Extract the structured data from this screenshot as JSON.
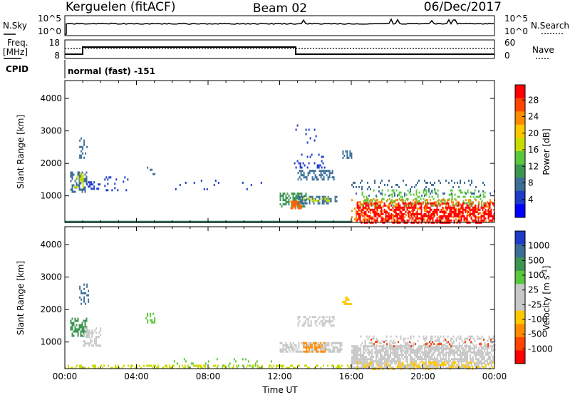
{
  "header": {
    "station": "Kerguelen (fitACF)",
    "beam": "Beam 02",
    "date": "06/Dec/2017"
  },
  "noise_panel": {
    "left_label": "N.Sky",
    "right_label": "N.Search",
    "left_ticks": [
      "10^5",
      "10^0"
    ],
    "right_ticks": [
      "10^5",
      "10^0"
    ]
  },
  "freq_panel": {
    "left_label_1": "Freq.",
    "left_label_2": "[MHz]",
    "right_label": "Nave",
    "left_ticks": [
      "18",
      "8"
    ],
    "right_ticks": [
      "60",
      "0"
    ],
    "cpid_label": "CPID",
    "cpid_text": "normal (fast) -151"
  },
  "chart_data": [
    {
      "type": "heatmap",
      "name": "power",
      "ylabel": "Slant Range [km]",
      "xlabel": "",
      "xlim": [
        0,
        24
      ],
      "ylim": [
        180,
        4550
      ],
      "y_ticks": [
        1000,
        2000,
        3000,
        4000
      ],
      "colorbar": {
        "label": "Power [dB]",
        "ticks": [
          "28",
          "24",
          "20",
          "16",
          "12",
          "8",
          "4"
        ],
        "colors": [
          "#ff0000",
          "#ff4400",
          "#ff8c00",
          "#ffc800",
          "#c8dc00",
          "#5ac83c",
          "#3c9650",
          "#3c6e96",
          "#1e3cc8",
          "#0000ff"
        ]
      },
      "scatter_regions": [
        {
          "t0": 0.0,
          "t1": 16.0,
          "r0": 200,
          "r1": 230,
          "color": "#2a6e5a",
          "density": 1.0
        },
        {
          "t0": 0.3,
          "t1": 1.2,
          "r0": 1100,
          "r1": 1750,
          "color": "#3c6e96",
          "density": 0.55
        },
        {
          "t0": 0.5,
          "t1": 1.0,
          "r0": 1300,
          "r1": 1700,
          "color": "#c8dc00",
          "density": 0.35
        },
        {
          "t0": 0.8,
          "t1": 1.3,
          "r0": 2200,
          "r1": 2800,
          "color": "#3c6e96",
          "density": 0.3
        },
        {
          "t0": 1.2,
          "t1": 2.0,
          "r0": 1200,
          "r1": 1450,
          "color": "#1e3cc8",
          "density": 0.4
        },
        {
          "t0": 2.2,
          "t1": 3.5,
          "r0": 1200,
          "r1": 1600,
          "color": "#1e3cc8",
          "density": 0.15
        },
        {
          "t0": 4.5,
          "t1": 5.0,
          "r0": 1600,
          "r1": 1900,
          "color": "#3c6e96",
          "density": 0.25
        },
        {
          "t0": 12.0,
          "t1": 13.5,
          "r0": 700,
          "r1": 1100,
          "color": "#3c9650",
          "density": 0.55
        },
        {
          "t0": 12.6,
          "t1": 13.2,
          "r0": 600,
          "r1": 850,
          "color": "#ff6000",
          "density": 0.7
        },
        {
          "t0": 13.0,
          "t1": 15.2,
          "r0": 800,
          "r1": 1000,
          "color": "#3c6e96",
          "density": 0.55
        },
        {
          "t0": 13.3,
          "t1": 15.0,
          "r0": 850,
          "r1": 950,
          "color": "#c8dc00",
          "density": 0.45
        },
        {
          "t0": 13.0,
          "t1": 15.0,
          "r0": 1500,
          "r1": 1800,
          "color": "#3c6e96",
          "density": 0.5
        },
        {
          "t0": 15.5,
          "t1": 16.0,
          "r0": 2150,
          "r1": 2400,
          "color": "#3c6e96",
          "density": 0.5
        },
        {
          "t0": 12.8,
          "t1": 14.5,
          "r0": 1900,
          "r1": 2300,
          "color": "#1e3cc8",
          "density": 0.12
        },
        {
          "t0": 12.8,
          "t1": 14.0,
          "r0": 2600,
          "r1": 3200,
          "color": "#1e3cc8",
          "density": 0.08
        },
        {
          "t0": 16.0,
          "t1": 24.0,
          "r0": 200,
          "r1": 900,
          "color": "#ff8c00",
          "density": 0.35
        },
        {
          "t0": 16.3,
          "t1": 24.0,
          "r0": 200,
          "r1": 800,
          "color": "#ff0000",
          "density": 0.55
        },
        {
          "t0": 16.5,
          "t1": 23.5,
          "r0": 700,
          "r1": 1200,
          "color": "#5ac83c",
          "density": 0.2
        },
        {
          "t0": 16.0,
          "t1": 24.0,
          "r0": 1000,
          "r1": 1500,
          "color": "#3c6e96",
          "density": 0.1
        },
        {
          "t0": 6.0,
          "t1": 11.5,
          "r0": 1200,
          "r1": 1500,
          "color": "#1e3cc8",
          "density": 0.03
        }
      ]
    },
    {
      "type": "heatmap",
      "name": "velocity",
      "ylabel": "Slant Range [km]",
      "xlabel": "Time UT",
      "xlim": [
        0,
        24
      ],
      "ylim": [
        180,
        4550
      ],
      "x_ticks": [
        "00:00",
        "04:00",
        "08:00",
        "12:00",
        "16:00",
        "20:00",
        "00:00"
      ],
      "y_ticks": [
        1000,
        2000,
        3000,
        4000
      ],
      "colorbar": {
        "label": "Velocity [m s^-1]",
        "ticks": [
          "1000",
          "500",
          "100",
          "25",
          "-25",
          "-100",
          "-500",
          "-1000"
        ],
        "colors": [
          "#1e3cc8",
          "#3c6e96",
          "#3c9650",
          "#5ac83c",
          "#c8c8c8",
          "#c8c8c8",
          "#ffc800",
          "#ff8c00",
          "#ff4400",
          "#ff0000"
        ]
      },
      "scatter_regions": [
        {
          "t0": 0.0,
          "t1": 16.0,
          "r0": 200,
          "r1": 300,
          "color": "#c8dc00",
          "density": 0.35
        },
        {
          "t0": 0.3,
          "t1": 1.2,
          "r0": 1200,
          "r1": 1750,
          "color": "#3c9650",
          "density": 0.6
        },
        {
          "t0": 0.8,
          "t1": 1.3,
          "r0": 2200,
          "r1": 2800,
          "color": "#3c6e96",
          "density": 0.3
        },
        {
          "t0": 1.0,
          "t1": 2.0,
          "r0": 900,
          "r1": 1450,
          "color": "#c8c8c8",
          "density": 0.4
        },
        {
          "t0": 12.0,
          "t1": 15.5,
          "r0": 700,
          "r1": 1000,
          "color": "#c8c8c8",
          "density": 0.6
        },
        {
          "t0": 13.3,
          "t1": 14.5,
          "r0": 700,
          "r1": 1000,
          "color": "#ff8c00",
          "density": 0.5
        },
        {
          "t0": 13.0,
          "t1": 15.0,
          "r0": 1500,
          "r1": 1800,
          "color": "#c8c8c8",
          "density": 0.5
        },
        {
          "t0": 15.5,
          "t1": 16.0,
          "r0": 2150,
          "r1": 2400,
          "color": "#ffc800",
          "density": 0.4
        },
        {
          "t0": 16.0,
          "t1": 24.0,
          "r0": 200,
          "r1": 900,
          "color": "#c8c8c8",
          "density": 0.7
        },
        {
          "t0": 16.3,
          "t1": 24.0,
          "r0": 200,
          "r1": 400,
          "color": "#ffc800",
          "density": 0.3
        },
        {
          "t0": 16.5,
          "t1": 24.0,
          "r0": 700,
          "r1": 1200,
          "color": "#c8c8c8",
          "density": 0.3
        },
        {
          "t0": 17.0,
          "t1": 24.0,
          "r0": 900,
          "r1": 1100,
          "color": "#ff4400",
          "density": 0.08
        },
        {
          "t0": 4.5,
          "t1": 5.0,
          "r0": 1600,
          "r1": 1900,
          "color": "#5ac83c",
          "density": 0.25
        },
        {
          "t0": 6.0,
          "t1": 11.5,
          "r0": 200,
          "r1": 500,
          "color": "#5ac83c",
          "density": 0.08
        }
      ]
    }
  ],
  "colors": {
    "frame": "#000000",
    "background": "#ffffff"
  }
}
